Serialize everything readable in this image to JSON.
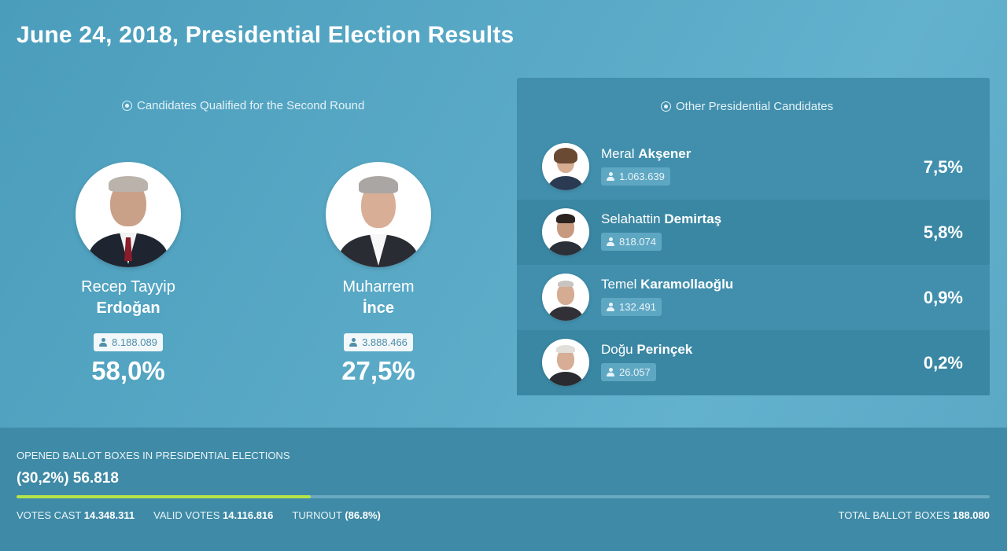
{
  "title": "June 24, 2018, Presidential Election Results",
  "second_round": {
    "heading": "Candidates Qualified for the Second Round",
    "candidates": [
      {
        "first": "Recep Tayyip",
        "last": "Erdoğan",
        "votes": "8.188.089",
        "percent": "58,0%",
        "suit_color": "#1f2530",
        "tie_color": "#8b1c2a"
      },
      {
        "first": "Muharrem",
        "last": "İnce",
        "votes": "3.888.466",
        "percent": "27,5%",
        "suit_color": "#2a2c33",
        "tie_color": "#f0f0f0"
      }
    ]
  },
  "others": {
    "heading": "Other Presidential Candidates",
    "candidates": [
      {
        "first": "Meral",
        "last": "Akşener",
        "votes": "1.063.639",
        "percent": "7,5%",
        "suit_color": "#2a3a52"
      },
      {
        "first": "Selahattin",
        "last": "Demirtaş",
        "votes": "818.074",
        "percent": "5,8%",
        "suit_color": "#2b2f38"
      },
      {
        "first": "Temel",
        "last": "Karamollaoğlu",
        "votes": "132.491",
        "percent": "0,9%",
        "suit_color": "#303036"
      },
      {
        "first": "Doğu",
        "last": "Perinçek",
        "votes": "26.057",
        "percent": "0,2%",
        "suit_color": "#2a2b30"
      }
    ]
  },
  "footer": {
    "ballot_label": "OPENED BALLOT BOXES IN PRESIDENTIAL ELECTIONS",
    "ballot_value": "(30,2%) 56.818",
    "progress_percent": 30.2,
    "votes_cast_label": "VOTES CAST",
    "votes_cast_value": "14.348.311",
    "valid_votes_label": "VALID VOTES",
    "valid_votes_value": "14.116.816",
    "turnout_label": "TURNOUT",
    "turnout_value": "(86.8%)",
    "total_boxes_label": "TOTAL BALLOT BOXES",
    "total_boxes_value": "188.080"
  }
}
